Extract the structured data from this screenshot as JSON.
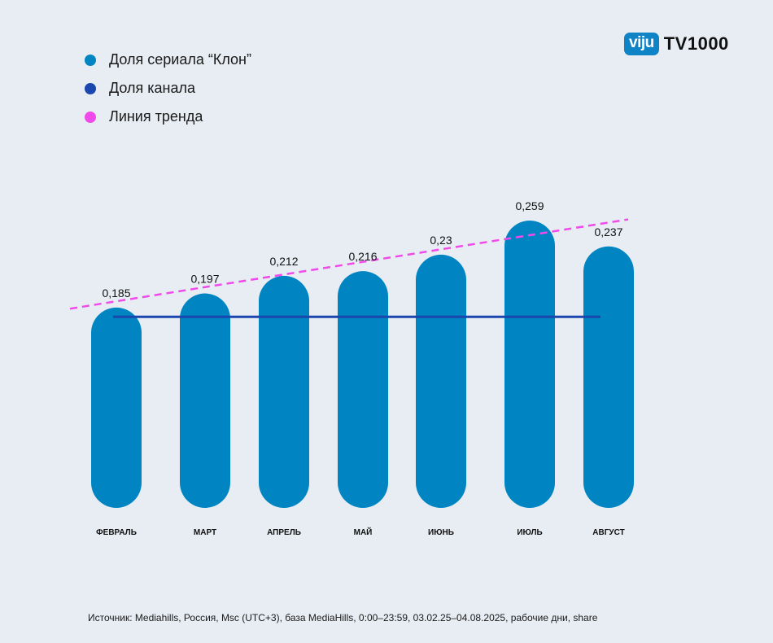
{
  "brand": {
    "badge": "viju",
    "name": "TV1000"
  },
  "legend": [
    {
      "label": "Доля сериала “Клон”",
      "color": "#0085c2"
    },
    {
      "label": "Доля канала",
      "color": "#1a46ad"
    },
    {
      "label": "Линия тренда",
      "color": "#f04bea"
    }
  ],
  "chart_data": {
    "type": "bar",
    "categories": [
      "ФЕВРАЛЬ",
      "МАРТ",
      "АПРЕЛЬ",
      "МАЙ",
      "ИЮНЬ",
      "ИЮЛЬ",
      "АВГУСТ"
    ],
    "series": [
      {
        "name": "Доля сериала “Клон”",
        "values": [
          0.185,
          0.197,
          0.212,
          0.216,
          0.23,
          0.259,
          0.237
        ]
      }
    ],
    "value_labels": [
      "0,185",
      "0,197",
      "0,212",
      "0,216",
      "0,23",
      "0,259",
      "0,237"
    ],
    "channel_share": 0.184,
    "trend_line": {
      "start": 0.184,
      "end": 0.26
    },
    "colors": {
      "bar": "#0085c2",
      "channel": "#1a46ad",
      "trend": "#f04bea"
    },
    "ylim": [
      0,
      0.26
    ],
    "grid": false
  },
  "source": "Источник: Mediahills, Россия, Msc (UTC+3), база MediaHills, 0:00–23:59, 03.02.25–04.08.2025, рабочие дни, share"
}
